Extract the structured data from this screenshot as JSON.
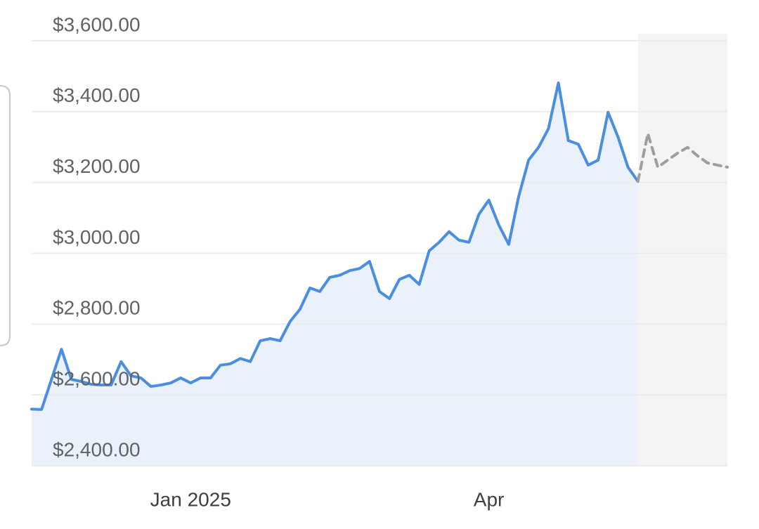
{
  "chart_data": {
    "type": "line",
    "categories": [
      null,
      null,
      null,
      null,
      null,
      null,
      null,
      null,
      null,
      null,
      null,
      null,
      null,
      null,
      null,
      null,
      "Jan 2025",
      null,
      null,
      null,
      null,
      null,
      null,
      null,
      null,
      null,
      null,
      null,
      null,
      null,
      null,
      null,
      null,
      null,
      null,
      null,
      null,
      null,
      null,
      null,
      null,
      null,
      null,
      null,
      null,
      null,
      "Apr",
      null,
      null,
      null,
      null,
      null,
      null,
      null,
      null,
      null,
      null,
      null,
      null,
      null,
      null,
      null,
      null,
      null,
      null,
      null,
      null,
      null,
      null,
      null,
      null
    ],
    "series": [
      {
        "color": "#4a8ee0",
        "fill": "#eaf1fb",
        "values": [
          2560,
          2559,
          2644,
          2729,
          2644,
          2638,
          2630,
          2628,
          2628,
          2694,
          2654,
          2648,
          2624,
          2628,
          2634,
          2648,
          2634,
          2648,
          2648,
          2684,
          2688,
          2703,
          2694,
          2753,
          2759,
          2753,
          2807,
          2842,
          2902,
          2892,
          2932,
          2938,
          2951,
          2957,
          2977,
          2892,
          2872,
          2926,
          2938,
          2912,
          3007,
          3031,
          3061,
          3037,
          3031,
          3110,
          3150,
          3080,
          3025,
          3160,
          3263,
          3299,
          3352,
          3481,
          3318,
          3308,
          3249,
          3263,
          3398,
          3328,
          3243,
          3203,
          null,
          null,
          null,
          null,
          null,
          null,
          null,
          null,
          null
        ]
      },
      {
        "color": "#9e9e9e",
        "dashed": true,
        "fill": "#f4f4f4",
        "values": [
          null,
          null,
          null,
          null,
          null,
          null,
          null,
          null,
          null,
          null,
          null,
          null,
          null,
          null,
          null,
          null,
          null,
          null,
          null,
          null,
          null,
          null,
          null,
          null,
          null,
          null,
          null,
          null,
          null,
          null,
          null,
          null,
          null,
          null,
          null,
          null,
          null,
          null,
          null,
          null,
          null,
          null,
          null,
          null,
          null,
          null,
          null,
          null,
          null,
          null,
          null,
          null,
          null,
          null,
          null,
          null,
          null,
          null,
          null,
          null,
          null,
          3203,
          3338,
          3243,
          3263,
          3283,
          3299,
          3275,
          3255,
          3249,
          3243
        ]
      }
    ],
    "ylim": [
      2400,
      3600
    ],
    "yticks": [
      {
        "value": 2400,
        "label": "$2,400.00"
      },
      {
        "value": 2600,
        "label": "$2,600.00"
      },
      {
        "value": 2800,
        "label": "$2,800.00"
      },
      {
        "value": 3000,
        "label": "$3,000.00"
      },
      {
        "value": 3200,
        "label": "$3,200.00"
      },
      {
        "value": 3400,
        "label": "$3,400.00"
      },
      {
        "value": 3600,
        "label": "$3,600.00"
      }
    ],
    "grid": true
  }
}
